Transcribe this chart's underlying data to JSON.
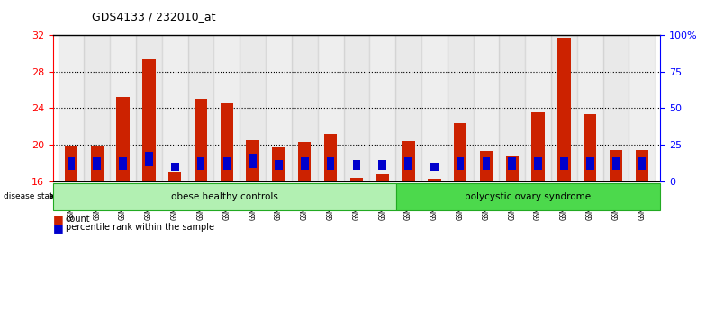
{
  "title": "GDS4133 / 232010_at",
  "samples": [
    "GSM201849",
    "GSM201850",
    "GSM201851",
    "GSM201852",
    "GSM201853",
    "GSM201854",
    "GSM201855",
    "GSM201856",
    "GSM201857",
    "GSM201858",
    "GSM201859",
    "GSM201861",
    "GSM201862",
    "GSM201863",
    "GSM201864",
    "GSM201865",
    "GSM201866",
    "GSM201867",
    "GSM201868",
    "GSM201869",
    "GSM201870",
    "GSM201871",
    "GSM201872"
  ],
  "count_values": [
    19.8,
    19.8,
    25.2,
    29.3,
    17.0,
    25.0,
    24.5,
    20.5,
    19.7,
    20.3,
    21.2,
    16.4,
    16.8,
    20.4,
    16.3,
    22.4,
    19.3,
    18.7,
    23.5,
    31.7,
    23.3,
    19.4,
    19.4
  ],
  "percentile_pos": [
    17.3,
    17.3,
    17.3,
    17.6,
    17.2,
    17.3,
    17.3,
    17.5,
    17.3,
    17.3,
    17.3,
    17.3,
    17.3,
    17.3,
    17.2,
    17.3,
    17.3,
    17.3,
    17.3,
    17.3,
    17.3,
    17.3,
    17.3
  ],
  "percentile_h": [
    1.3,
    1.3,
    1.3,
    1.6,
    0.8,
    1.3,
    1.3,
    1.5,
    1.0,
    1.3,
    1.3,
    1.0,
    1.0,
    1.3,
    0.8,
    1.3,
    1.3,
    1.3,
    1.3,
    1.3,
    1.3,
    1.3,
    1.3
  ],
  "groups": [
    {
      "label": "obese healthy controls",
      "start": 0,
      "end": 13,
      "color": "#b2f0b2"
    },
    {
      "label": "polycystic ovary syndrome",
      "start": 13,
      "end": 23,
      "color": "#4cd94c"
    }
  ],
  "ylim_left": [
    16,
    32
  ],
  "ylim_right": [
    0,
    100
  ],
  "yticks_left": [
    16,
    20,
    24,
    28,
    32
  ],
  "yticks_right": [
    0,
    25,
    50,
    75,
    100
  ],
  "ytick_labels_right": [
    "0",
    "25",
    "50",
    "75",
    "100%"
  ],
  "bar_color": "#CC2200",
  "percentile_color": "#0000CC",
  "title_fontsize": 9
}
